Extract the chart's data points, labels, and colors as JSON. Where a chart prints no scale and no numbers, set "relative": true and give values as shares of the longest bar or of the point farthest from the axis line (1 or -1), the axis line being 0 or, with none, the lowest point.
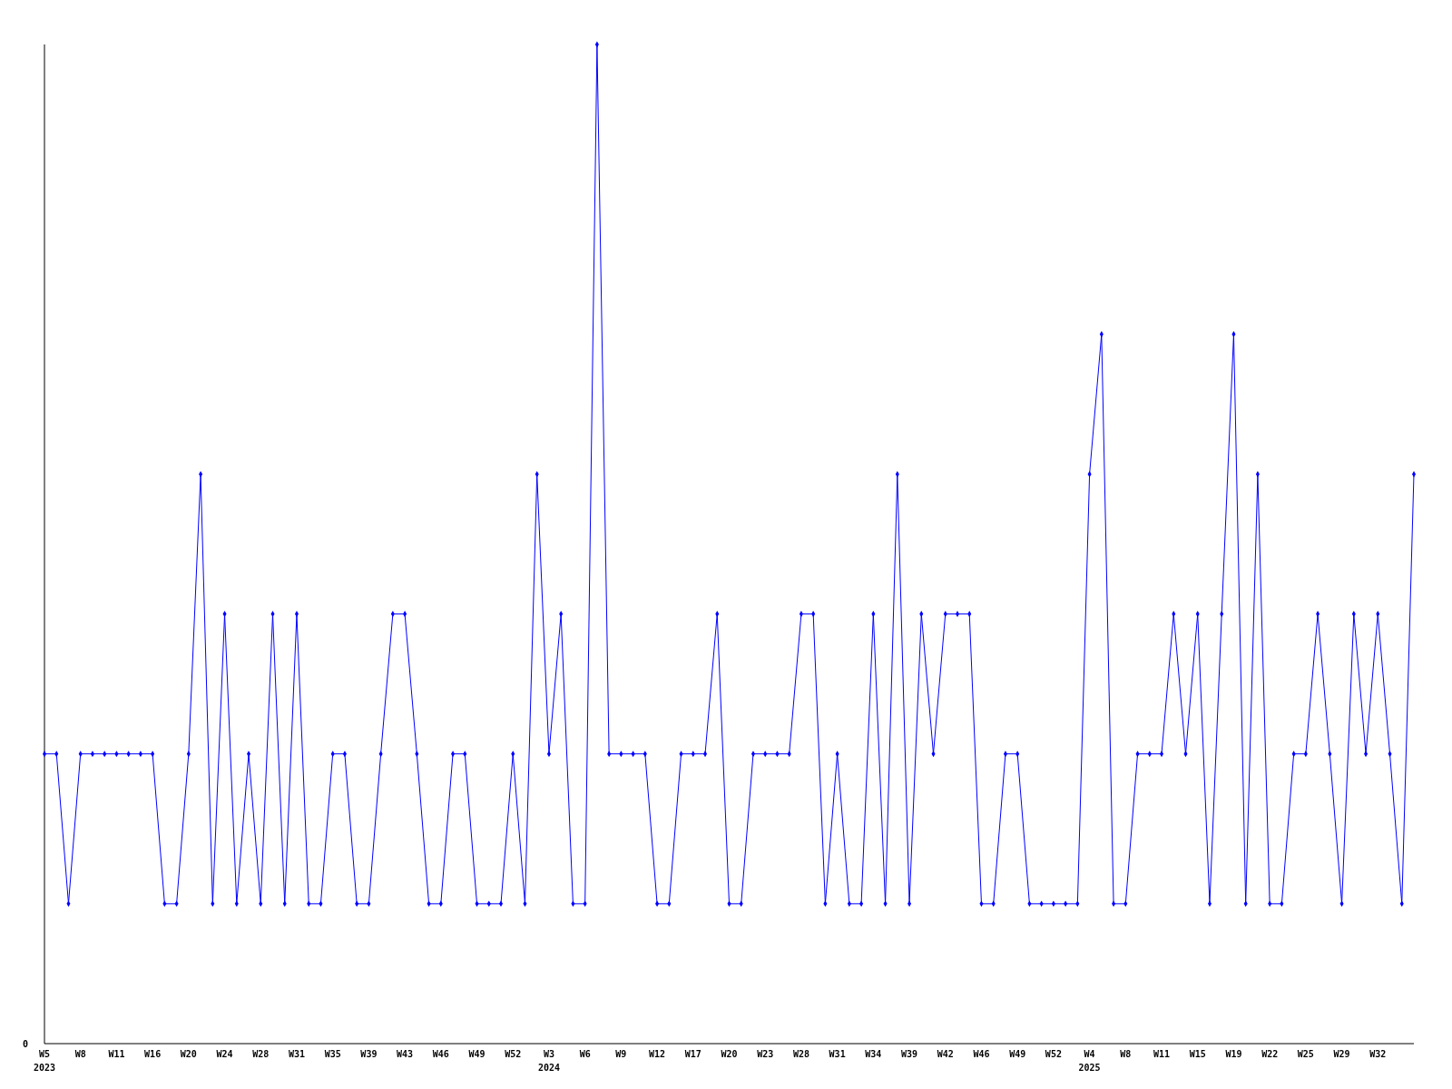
{
  "chart_data": {
    "type": "line",
    "relative": true,
    "marker": "diamond",
    "line_style": "solid",
    "annotations": [
      "0"
    ],
    "categories": [
      "W5\n2023",
      null,
      null,
      "W8",
      null,
      null,
      "W11",
      null,
      null,
      "W16",
      null,
      null,
      "W20",
      null,
      null,
      "W24",
      null,
      null,
      "W28",
      null,
      null,
      "W31",
      null,
      null,
      "W35",
      null,
      null,
      "W39",
      null,
      null,
      "W43",
      null,
      null,
      "W46",
      null,
      null,
      "W49",
      null,
      null,
      "W52",
      null,
      null,
      "W3\n2024",
      null,
      null,
      "W6",
      null,
      null,
      "W9",
      null,
      null,
      "W12",
      null,
      null,
      "W17",
      null,
      null,
      "W20",
      null,
      null,
      "W23",
      null,
      null,
      "W28",
      null,
      null,
      "W31",
      null,
      null,
      "W34",
      null,
      null,
      "W39",
      null,
      null,
      "W42",
      null,
      null,
      "W46",
      null,
      null,
      "W49",
      null,
      null,
      "W52",
      null,
      null,
      "W4\n2025",
      null,
      null,
      "W8",
      null,
      null,
      "W11",
      null,
      null,
      "W15",
      null,
      null,
      "W19",
      null,
      null,
      "W22",
      null,
      null,
      "W25",
      null,
      null,
      "W29",
      null,
      null,
      "W32",
      null,
      null,
      null
    ],
    "series": [
      {
        "color": "#0000ff",
        "values": [
          0.29,
          0.29,
          0.14,
          0.29,
          0.29,
          0.29,
          0.29,
          0.29,
          0.29,
          0.29,
          0.14,
          0.14,
          0.29,
          0.57,
          0.14,
          0.43,
          0.14,
          0.29,
          0.14,
          0.43,
          0.14,
          0.43,
          0.14,
          0.14,
          0.29,
          0.29,
          0.14,
          0.14,
          0.29,
          0.43,
          0.43,
          0.29,
          0.14,
          0.14,
          0.29,
          0.29,
          0.14,
          0.14,
          0.14,
          0.29,
          0.14,
          0.57,
          0.29,
          0.43,
          0.14,
          0.14,
          1,
          0.29,
          0.29,
          0.29,
          0.29,
          0.14,
          0.14,
          0.29,
          0.29,
          0.29,
          0.43,
          0.14,
          0.14,
          0.29,
          0.29,
          0.29,
          0.29,
          0.43,
          0.43,
          0.14,
          0.29,
          0.14,
          0.14,
          0.43,
          0.14,
          0.57,
          0.14,
          0.43,
          0.29,
          0.43,
          0.43,
          0.43,
          0.14,
          0.14,
          0.29,
          0.29,
          0.14,
          0.14,
          0.14,
          0.14,
          0.14,
          0.57,
          0.71,
          0.14,
          0.14,
          0.29,
          0.29,
          0.29,
          0.43,
          0.29,
          0.43,
          0.14,
          0.43,
          0.71,
          0.14,
          0.57,
          0.14,
          0.14,
          0.29,
          0.29,
          0.43,
          0.29,
          0.14,
          0.43,
          0.29,
          0.43,
          0.29,
          0.14,
          0.57
        ]
      }
    ]
  }
}
